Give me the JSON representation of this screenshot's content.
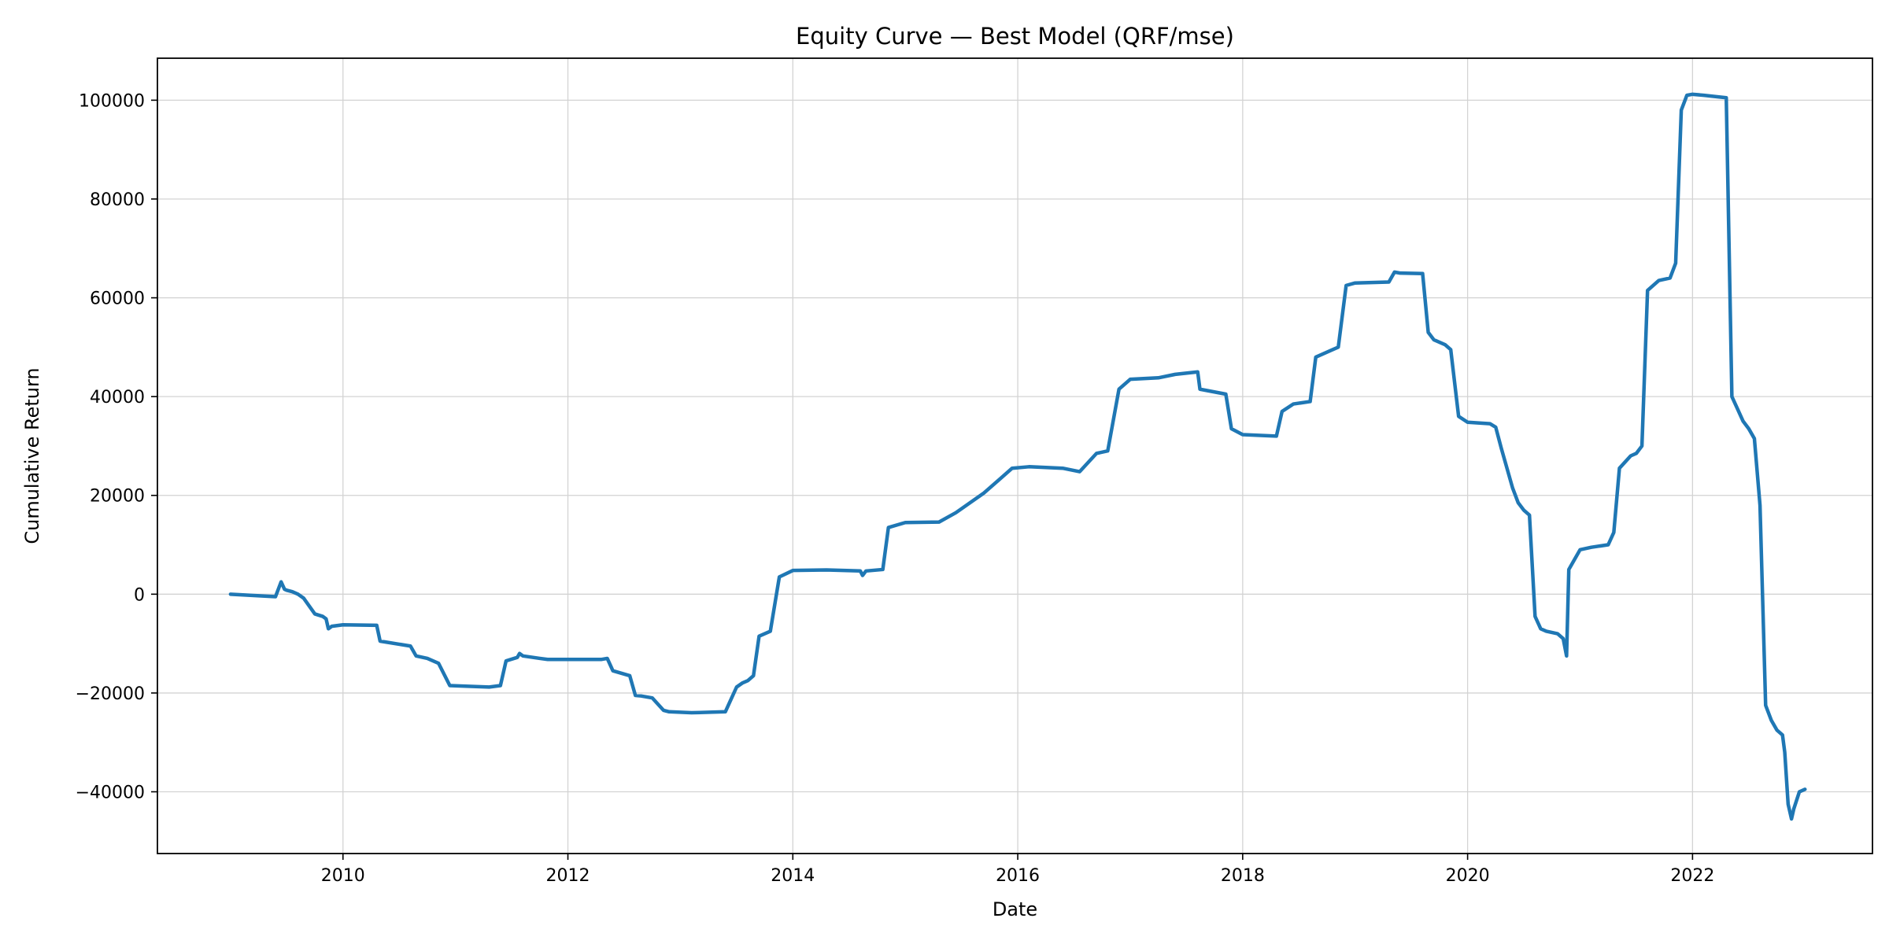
{
  "chart_data": {
    "type": "line",
    "title": "Equity Curve — Best Model (QRF/mse)",
    "xlabel": "Date",
    "ylabel": "Cumulative Return",
    "xlim": [
      2008.35,
      2023.6
    ],
    "ylim": [
      -52500,
      108500
    ],
    "x_ticks": [
      2010,
      2012,
      2014,
      2016,
      2018,
      2020,
      2022
    ],
    "y_ticks": [
      -40000,
      -20000,
      0,
      20000,
      40000,
      60000,
      80000,
      100000
    ],
    "grid": true,
    "line_color": "#1f77b4",
    "series": [
      {
        "x": [
          2009.0,
          2009.4,
          2009.45,
          2009.48,
          2009.5,
          2009.55,
          2009.6,
          2009.65,
          2009.75,
          2009.82,
          2009.85,
          2009.87,
          2009.9,
          2010.0,
          2010.3,
          2010.33,
          2010.6,
          2010.65,
          2010.75,
          2010.85,
          2010.95,
          2011.3,
          2011.4,
          2011.45,
          2011.55,
          2011.57,
          2011.6,
          2011.75,
          2011.82,
          2012.3,
          2012.35,
          2012.4,
          2012.55,
          2012.6,
          2012.65,
          2012.75,
          2012.85,
          2012.9,
          2013.1,
          2013.4,
          2013.5,
          2013.55,
          2013.6,
          2013.65,
          2013.7,
          2013.75,
          2013.8,
          2013.88,
          2014.0,
          2014.3,
          2014.6,
          2014.62,
          2014.65,
          2014.8,
          2014.85,
          2015.0,
          2015.3,
          2015.45,
          2015.7,
          2015.95,
          2016.1,
          2016.4,
          2016.55,
          2016.7,
          2016.8,
          2016.9,
          2017.0,
          2017.25,
          2017.4,
          2017.6,
          2017.62,
          2017.85,
          2017.9,
          2018.0,
          2018.3,
          2018.35,
          2018.45,
          2018.6,
          2018.65,
          2018.8,
          2018.85,
          2018.92,
          2019.0,
          2019.3,
          2019.35,
          2019.4,
          2019.6,
          2019.65,
          2019.7,
          2019.8,
          2019.85,
          2019.92,
          2020.0,
          2020.2,
          2020.25,
          2020.3,
          2020.4,
          2020.45,
          2020.5,
          2020.55,
          2020.6,
          2020.65,
          2020.7,
          2020.8,
          2020.85,
          2020.88,
          2020.9,
          2020.95,
          2021.0,
          2021.1,
          2021.25,
          2021.3,
          2021.35,
          2021.45,
          2021.5,
          2021.55,
          2021.6,
          2021.7,
          2021.8,
          2021.85,
          2021.9,
          2021.95,
          2022.0,
          2022.1,
          2022.3,
          2022.35,
          2022.4,
          2022.45,
          2022.5,
          2022.55,
          2022.6,
          2022.65,
          2022.7,
          2022.75,
          2022.8,
          2022.82,
          2022.85,
          2022.88,
          2022.9,
          2022.95,
          2023.0
        ],
        "values": [
          0,
          -500,
          2500,
          1000,
          800,
          500,
          0,
          -800,
          -4000,
          -4500,
          -5000,
          -7000,
          -6500,
          -6200,
          -6300,
          -9500,
          -10500,
          -12500,
          -13000,
          -14000,
          -18500,
          -18800,
          -18500,
          -13500,
          -12800,
          -12000,
          -12500,
          -13000,
          -13200,
          -13200,
          -13000,
          -15500,
          -16500,
          -20500,
          -20600,
          -21000,
          -23500,
          -23800,
          -24000,
          -23800,
          -18800,
          -18000,
          -17500,
          -16500,
          -8500,
          -8000,
          -7500,
          3500,
          4800,
          4900,
          4700,
          3800,
          4700,
          5000,
          13500,
          14500,
          14600,
          16500,
          20500,
          25500,
          25800,
          25500,
          24800,
          28500,
          29000,
          41500,
          43500,
          43800,
          44500,
          45000,
          41500,
          40500,
          33500,
          32300,
          32000,
          37000,
          38500,
          39000,
          48000,
          49500,
          50000,
          62500,
          63000,
          63200,
          65200,
          65000,
          64900,
          53000,
          51500,
          50500,
          49500,
          36000,
          34800,
          34500,
          33800,
          29500,
          21500,
          18500,
          17000,
          16000,
          -4500,
          -7000,
          -7500,
          -8000,
          -9000,
          -12500,
          5000,
          7000,
          9000,
          9500,
          10000,
          12500,
          25500,
          28000,
          28500,
          30000,
          61500,
          63500,
          64000,
          67000,
          98000,
          101000,
          101200,
          101000,
          100500,
          40000,
          37500,
          35000,
          33500,
          31500,
          18000,
          -22500,
          -25500,
          -27500,
          -28500,
          -32000,
          -42500,
          -45500,
          -43500,
          -40000,
          -39500
        ]
      }
    ]
  }
}
